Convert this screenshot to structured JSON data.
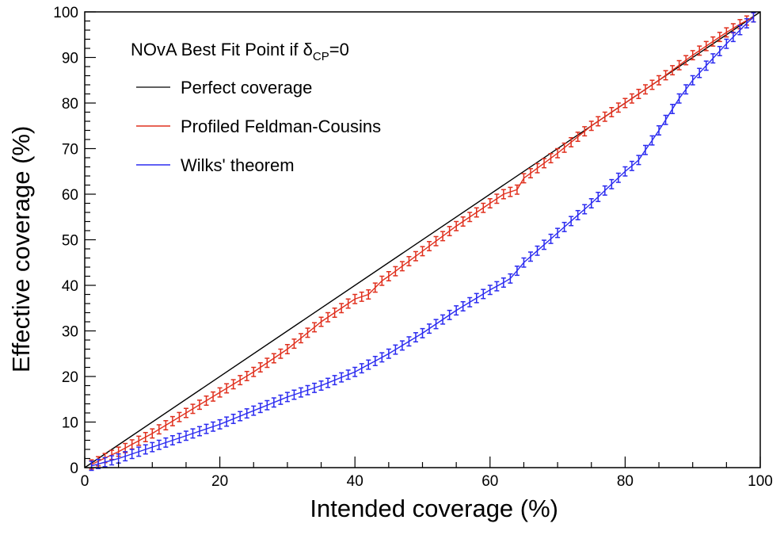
{
  "chart_data": {
    "type": "line",
    "xlabel": "Intended coverage (%)",
    "ylabel": "Effective coverage (%)",
    "xlim": [
      0,
      100
    ],
    "ylim": [
      0,
      100
    ],
    "x_ticks": [
      0,
      20,
      40,
      60,
      80,
      100
    ],
    "y_ticks": [
      0,
      10,
      20,
      30,
      40,
      50,
      60,
      70,
      80,
      90,
      100
    ],
    "grid": false,
    "legend_position": "top-left",
    "legend_title": {
      "main": "NOvA Best Fit Point if δ",
      "sub": "CP",
      "tail": "=0"
    },
    "error_bar": 1.0,
    "x": [
      1,
      2,
      3,
      4,
      5,
      6,
      7,
      8,
      9,
      10,
      11,
      12,
      13,
      14,
      15,
      16,
      17,
      18,
      19,
      20,
      21,
      22,
      23,
      24,
      25,
      26,
      27,
      28,
      29,
      30,
      31,
      32,
      33,
      34,
      35,
      36,
      37,
      38,
      39,
      40,
      41,
      42,
      43,
      44,
      45,
      46,
      47,
      48,
      49,
      50,
      51,
      52,
      53,
      54,
      55,
      56,
      57,
      58,
      59,
      60,
      61,
      62,
      63,
      64,
      65,
      66,
      67,
      68,
      69,
      70,
      71,
      72,
      73,
      74,
      75,
      76,
      77,
      78,
      79,
      80,
      81,
      82,
      83,
      84,
      85,
      86,
      87,
      88,
      89,
      90,
      91,
      92,
      93,
      94,
      95,
      96,
      97,
      98,
      99
    ],
    "series": [
      {
        "name": "Perfect coverage",
        "color": "#000000",
        "kind": "line",
        "x": [
          0,
          100
        ],
        "values": [
          0,
          100
        ]
      },
      {
        "name": "Profiled Feldman-Cousins",
        "color": "#e0301e",
        "kind": "errorbar",
        "values": [
          0.7,
          1.4,
          2.1,
          2.8,
          3.5,
          4.3,
          5.1,
          5.9,
          6.7,
          7.5,
          8.4,
          9.3,
          10.2,
          11.1,
          12,
          12.9,
          13.8,
          14.7,
          15.6,
          16.5,
          17.4,
          18.3,
          19.2,
          20.1,
          21,
          22,
          23,
          24,
          25,
          26,
          27.2,
          28.4,
          29.6,
          30.8,
          32,
          33,
          34,
          35,
          36,
          37,
          37.5,
          38,
          39.5,
          41,
          42,
          43.1,
          44.2,
          45.3,
          46.4,
          47.5,
          48.6,
          49.7,
          50.8,
          51.9,
          53,
          54,
          55,
          56,
          57,
          58,
          59,
          60,
          60.5,
          61,
          63.5,
          64.6,
          65.7,
          66.8,
          67.9,
          69,
          70.2,
          71.4,
          72.6,
          73.8,
          75,
          76,
          77,
          78,
          79,
          80,
          81,
          82,
          83,
          84,
          85,
          86.1,
          87.2,
          88.3,
          89.4,
          90.5,
          91.5,
          92.5,
          93.5,
          94.5,
          95.5,
          96.4,
          97.3,
          98.1,
          98.8
        ]
      },
      {
        "name": "Wilks' theorem",
        "color": "#2b2bf0",
        "kind": "errorbar",
        "values": [
          0.4,
          0.8,
          1.2,
          1.6,
          2,
          2.5,
          3,
          3.5,
          4,
          4.5,
          5,
          5.5,
          6,
          6.5,
          7,
          7.5,
          8,
          8.5,
          9,
          9.5,
          10.1,
          10.7,
          11.3,
          11.9,
          12.5,
          13.1,
          13.7,
          14.3,
          14.9,
          15.5,
          16,
          16.5,
          17,
          17.5,
          18,
          18.6,
          19.2,
          19.8,
          20.4,
          21,
          21.8,
          22.6,
          23.4,
          24.2,
          25,
          25.9,
          26.8,
          27.7,
          28.6,
          29.5,
          30.5,
          31.5,
          32.5,
          33.5,
          34.5,
          35.4,
          36.3,
          37.2,
          38.1,
          39,
          39.8,
          40.6,
          41.5,
          43.2,
          45,
          46.3,
          47.6,
          48.9,
          50.2,
          51.5,
          52.8,
          54.1,
          55.4,
          56.7,
          58,
          59.4,
          60.8,
          62.2,
          63.6,
          65,
          66.2,
          67.5,
          69.7,
          71.8,
          74,
          76.3,
          78.7,
          81,
          83,
          85,
          86.6,
          88.2,
          89.8,
          91.4,
          93,
          94.5,
          96,
          97.5,
          98.8
        ]
      }
    ]
  }
}
